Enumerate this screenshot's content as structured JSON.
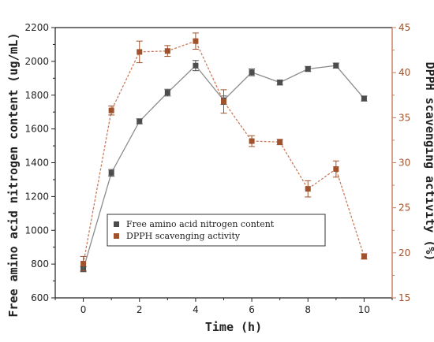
{
  "chart_data": {
    "type": "line",
    "title": "",
    "xlabel": "Time (h)",
    "ylabel_left": "Free amino acid nitrogen content (ug/mL)",
    "ylabel_right": "DPPH scavenging activity (%)",
    "xlim": [
      -1,
      11
    ],
    "ylim_left": [
      600,
      2200
    ],
    "ylim_right": [
      15,
      45
    ],
    "x_ticks": [
      "0",
      "2",
      "4",
      "6",
      "8",
      "10"
    ],
    "y_ticks_left": [
      "600",
      "800",
      "1000",
      "1200",
      "1400",
      "1600",
      "1800",
      "2000",
      "2200"
    ],
    "y_ticks_right": [
      "15",
      "20",
      "25",
      "30",
      "35",
      "40",
      "45"
    ],
    "grid": false,
    "legend_placement": "center-right inside plot",
    "series": [
      {
        "name": "Free amino acid nitrogen content",
        "axis": "left",
        "color": "#4d4d4d",
        "line_color": "#8c8c8c",
        "x": [
          0,
          1,
          2,
          3,
          4,
          5,
          6,
          7,
          8,
          9,
          10
        ],
        "values": [
          770,
          1340,
          1645,
          1815,
          1975,
          1770,
          1935,
          1875,
          1955,
          1975,
          1780
        ],
        "errors": [
          15,
          20,
          15,
          20,
          30,
          25,
          20,
          15,
          15,
          15,
          15
        ]
      },
      {
        "name": "DPPH scavenging activity",
        "axis": "right",
        "color": "#a0522d",
        "line_color": "#c97b5a",
        "x": [
          0,
          1,
          2,
          3,
          4,
          5,
          6,
          7,
          8,
          9,
          10
        ],
        "values": [
          18.8,
          35.8,
          42.3,
          42.4,
          43.5,
          36.8,
          32.4,
          32.3,
          27.1,
          29.3,
          19.6
        ],
        "errors": [
          0.8,
          0.5,
          1.2,
          0.6,
          0.9,
          1.3,
          0.6,
          0.3,
          0.9,
          0.9,
          0.3
        ]
      }
    ]
  }
}
